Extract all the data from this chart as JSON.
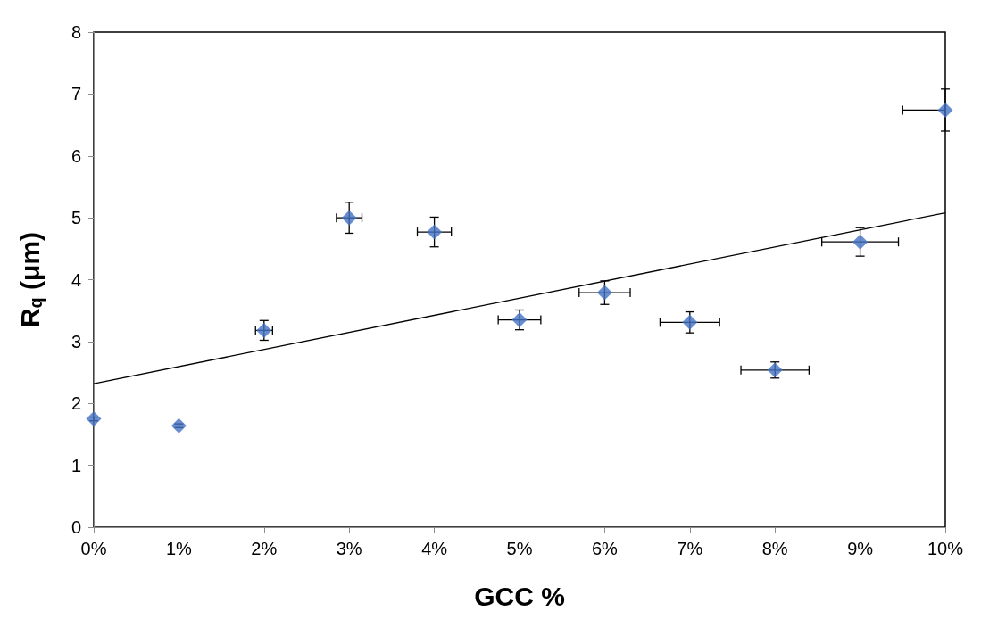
{
  "chart_data": {
    "type": "scatter",
    "xlabel": "GCC %",
    "ylabel": "R$_{q}$ (μm)",
    "x": [
      0,
      1,
      2,
      3,
      4,
      5,
      6,
      7,
      8,
      9,
      10
    ],
    "series": [
      {
        "color": "#4472c4",
        "marker": "diamond",
        "values": [
          1.75,
          1.64,
          3.18,
          5.0,
          4.77,
          3.35,
          3.79,
          3.31,
          2.54,
          4.61,
          6.74
        ],
        "errors": [
          0.03,
          0.03,
          0.16,
          0.25,
          0.24,
          0.16,
          0.19,
          0.17,
          0.13,
          0.23,
          0.34
        ],
        "xerrors": [
          null,
          null,
          0.1,
          0.15,
          0.2,
          0.25,
          0.3,
          0.35,
          0.4,
          0.45,
          [
            9.5,
            10
          ]
        ]
      },
      {
        "type": "line",
        "color": "#000000",
        "marker": "none",
        "x": [
          0,
          10
        ],
        "values": [
          2.32,
          5.08
        ]
      }
    ],
    "xlim": [
      0,
      10
    ],
    "xticks": [
      {
        "value": 0,
        "label": "0%"
      },
      {
        "value": 1,
        "label": "1%"
      },
      {
        "value": 2,
        "label": "2%"
      },
      {
        "value": 3,
        "label": "3%"
      },
      {
        "value": 4,
        "label": "4%"
      },
      {
        "value": 5,
        "label": "5%"
      },
      {
        "value": 6,
        "label": "6%"
      },
      {
        "value": 7,
        "label": "7%"
      },
      {
        "value": 8,
        "label": "8%"
      },
      {
        "value": 9,
        "label": "9%"
      },
      {
        "value": 10,
        "label": "10%"
      }
    ],
    "ylim": [
      0,
      8
    ],
    "yticks": [
      0,
      1,
      2,
      3,
      4,
      5,
      6,
      7,
      8
    ]
  }
}
